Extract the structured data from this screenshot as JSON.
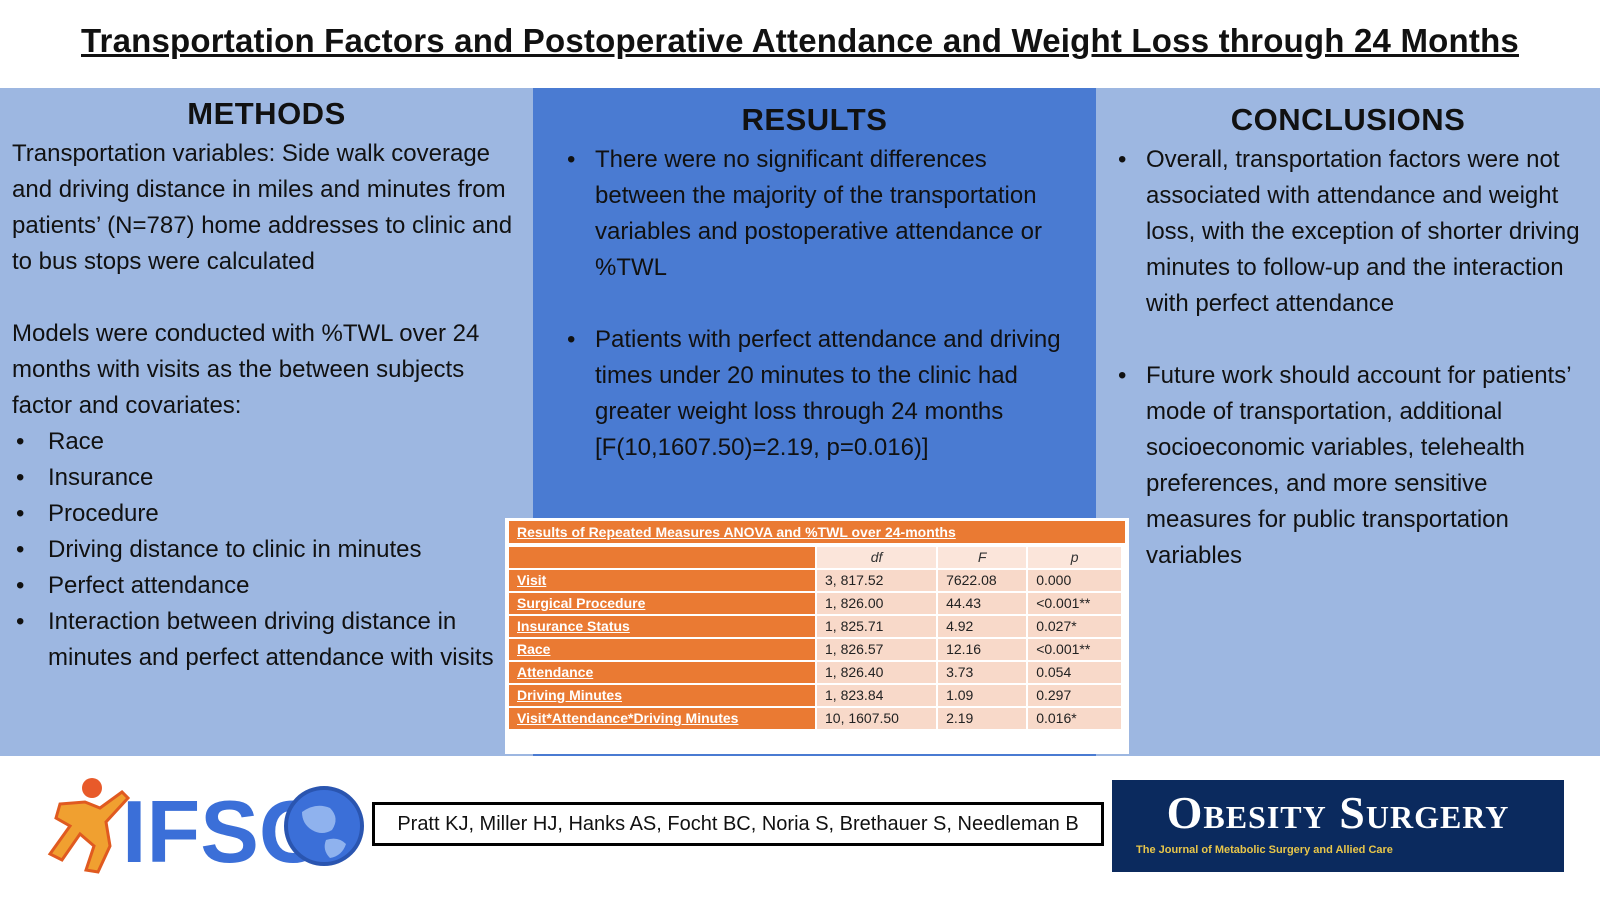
{
  "title": "Transportation Factors and Postoperative Attendance and Weight Loss through 24 Months",
  "methods": {
    "heading": "METHODS",
    "para1": "Transportation variables: Side walk coverage and driving distance in miles and minutes from patients’ (N=787) home addresses to clinic and to bus stops were calculated",
    "para2": "Models were conducted with %TWL over 24 months with visits as the between subjects factor and covariates:",
    "covariates": [
      "Race",
      "Insurance",
      "Procedure",
      "Driving distance to clinic in minutes",
      "Perfect attendance",
      "Interaction between driving distance in minutes and perfect attendance with visits"
    ]
  },
  "results": {
    "heading": "RESULTS",
    "bullets": [
      "There were no significant differences between the majority of the transportation variables and postoperative attendance or %TWL",
      "Patients with perfect attendance and driving times under 20 minutes to the clinic had greater weight loss through 24 months [F(10,1607.50)=2.19, p=0.016)]"
    ]
  },
  "conclusions": {
    "heading": "CONCLUSIONS",
    "bullets": [
      "Overall, transportation factors were not associated with attendance and weight loss, with the exception of shorter driving minutes to follow-up and the interaction with perfect attendance",
      "Future work should account for patients’ mode of transportation, additional socioeconomic variables, telehealth preferences, and more sensitive measures for public transportation variables"
    ]
  },
  "stats_table": {
    "caption": "Results of Repeated Measures ANOVA and %TWL over 24-months",
    "headers": [
      "",
      "df",
      "F",
      "p"
    ],
    "rows": [
      {
        "label": "Visit",
        "df": "3, 817.52",
        "F": "7622.08",
        "p": "0.000"
      },
      {
        "label": "Surgical Procedure",
        "df": "1, 826.00",
        "F": "44.43",
        "p": "<0.001**"
      },
      {
        "label": "Insurance Status",
        "df": "1, 825.71",
        "F": "4.92",
        "p": "0.027*"
      },
      {
        "label": "Race",
        "df": "1, 826.57",
        "F": "12.16",
        "p": "<0.001**"
      },
      {
        "label": "Attendance",
        "df": "1, 826.40",
        "F": "3.73",
        "p": "0.054"
      },
      {
        "label": "Driving Minutes",
        "df": "1, 823.84",
        "F": "1.09",
        "p": "0.297"
      },
      {
        "label": "Visit*Attendance*Driving Minutes",
        "df": "10, 1607.50",
        "F": "2.19",
        "p": "0.016*"
      }
    ]
  },
  "footer": {
    "logo_text": "IFSO",
    "authors": "Pratt KJ, Miller HJ, Hanks AS, Focht BC, Noria S, Brethauer S, Needleman B",
    "journal_title": "Obesity Surgery",
    "journal_subtitle": "The Journal of Metabolic Surgery and Allied Care"
  },
  "colors": {
    "side_panel": "#9db7e1",
    "center_panel": "#4a7bd2",
    "table_accent": "#ea7a33",
    "table_cell": "#f8d9c9",
    "journal_bg": "#0b2a5e",
    "logo_blue": "#3b6fd8",
    "logo_figure": "#f0a030"
  }
}
